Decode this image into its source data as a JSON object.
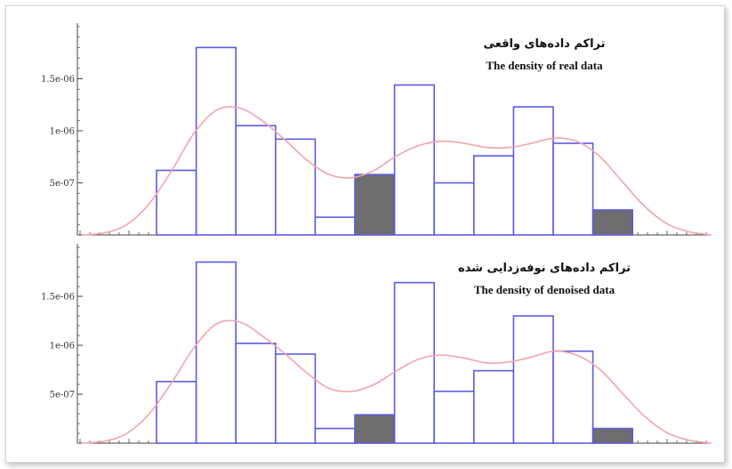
{
  "chart_data": [
    {
      "type": "bar",
      "title_fa": "تراکم داده‌های واقعی",
      "title": "The density of real data",
      "xlabel": "",
      "ylabel": "",
      "ylim": [
        0,
        2e-06
      ],
      "y_ticks": [
        "5e-07",
        "1e-06",
        "1.5e-06"
      ],
      "y_tick_values": [
        5e-07,
        1e-06,
        1.5e-06
      ],
      "bins": [
        {
          "value": 6.2e-07,
          "highlight": false
        },
        {
          "value": 1.8e-06,
          "highlight": false
        },
        {
          "value": 1.05e-06,
          "highlight": false
        },
        {
          "value": 9.2e-07,
          "highlight": false
        },
        {
          "value": 1.7e-07,
          "highlight": false
        },
        {
          "value": 5.8e-07,
          "highlight": true
        },
        {
          "value": 1.44e-06,
          "highlight": false
        },
        {
          "value": 5e-07,
          "highlight": false
        },
        {
          "value": 7.6e-07,
          "highlight": false
        },
        {
          "value": 1.23e-06,
          "highlight": false
        },
        {
          "value": 8.8e-07,
          "highlight": false
        },
        {
          "value": 2.4e-07,
          "highlight": true
        }
      ],
      "density_curve": [
        0,
        2e-08,
        1e-07,
        3e-07,
        6.2e-07,
        9.8e-07,
        1.2e-06,
        1.22e-06,
        1.1e-06,
        9.2e-07,
        7.2e-07,
        5.8e-07,
        5.5e-07,
        6.2e-07,
        7.6e-07,
        8.6e-07,
        9e-07,
        8.8e-07,
        8.4e-07,
        8.4e-07,
        8.8e-07,
        9.3e-07,
        9e-07,
        7.6e-07,
        5.2e-07,
        2.8e-07,
        1.1e-07,
        3e-08,
        0.0
      ]
    },
    {
      "type": "bar",
      "title_fa": "تراکم داده‌های نوفه‌زدایی شده",
      "title": "The density of denoised data",
      "xlabel": "",
      "ylabel": "",
      "ylim": [
        0,
        2e-06
      ],
      "y_ticks": [
        "5e-07",
        "1e-06",
        "1.5e-06"
      ],
      "y_tick_values": [
        5e-07,
        1e-06,
        1.5e-06
      ],
      "bins": [
        {
          "value": 6.3e-07,
          "highlight": false
        },
        {
          "value": 1.85e-06,
          "highlight": false
        },
        {
          "value": 1.02e-06,
          "highlight": false
        },
        {
          "value": 9.1e-07,
          "highlight": false
        },
        {
          "value": 1.5e-07,
          "highlight": false
        },
        {
          "value": 2.9e-07,
          "highlight": true
        },
        {
          "value": 1.64e-06,
          "highlight": false
        },
        {
          "value": 5.3e-07,
          "highlight": false
        },
        {
          "value": 7.4e-07,
          "highlight": false
        },
        {
          "value": 1.3e-06,
          "highlight": false
        },
        {
          "value": 9.4e-07,
          "highlight": false
        },
        {
          "value": 1.5e-07,
          "highlight": true
        }
      ],
      "density_curve": [
        0,
        2e-08,
        1e-07,
        3e-07,
        6.2e-07,
        9.8e-07,
        1.22e-06,
        1.24e-06,
        1.1e-06,
        9.2e-07,
        7.2e-07,
        5.6e-07,
        5.3e-07,
        6e-07,
        7.4e-07,
        8.6e-07,
        9e-07,
        8.7e-07,
        8.2e-07,
        8.3e-07,
        8.8e-07,
        9.4e-07,
        9e-07,
        7.6e-07,
        5.2e-07,
        2.8e-07,
        1.1e-07,
        3e-08,
        0.0
      ]
    }
  ],
  "colors": {
    "bar_outline": "#5b5be0",
    "bar_fill": "#ffffff",
    "highlight_fill": "#6e6e6e",
    "curve": "#f2a4ad",
    "axis": "#444444"
  }
}
